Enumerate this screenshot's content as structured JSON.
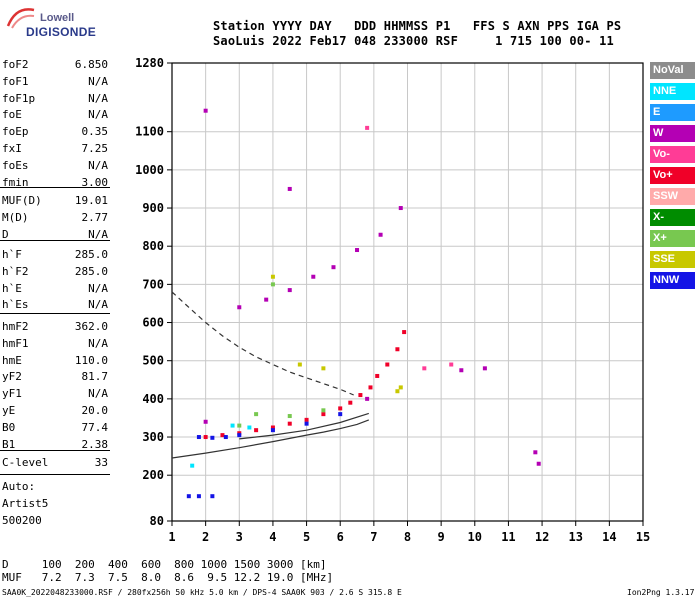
{
  "logo": {
    "line1": "Lowell",
    "line2": "DIGISONDE"
  },
  "header": {
    "line1": "Station YYYY DAY   DDD HHMMSS P1   FFS S AXN PPS IGA PS",
    "line2": "SaoLuis 2022 Feb17 048 233000 RSF     1 715 100 00- 11"
  },
  "params": {
    "group1": [
      {
        "key": "foF2",
        "value": "6.850"
      },
      {
        "key": "foF1",
        "value": "N/A"
      },
      {
        "key": "foF1p",
        "value": "N/A"
      },
      {
        "key": "foE",
        "value": "N/A"
      },
      {
        "key": "foEp",
        "value": "0.35"
      },
      {
        "key": "fxI",
        "value": "7.25"
      },
      {
        "key": "foEs",
        "value": "N/A"
      },
      {
        "key": "fmin",
        "value": "3.00"
      }
    ],
    "group2": [
      {
        "key": "MUF(D)",
        "value": "19.01"
      },
      {
        "key": "M(D)",
        "value": "2.77"
      },
      {
        "key": "D",
        "value": "N/A"
      }
    ],
    "group3": [
      {
        "key": "h`F",
        "value": "285.0"
      },
      {
        "key": "h`F2",
        "value": "285.0"
      },
      {
        "key": "h`E",
        "value": "N/A"
      },
      {
        "key": "h`Es",
        "value": "N/A"
      }
    ],
    "group4": [
      {
        "key": "hmF2",
        "value": "362.0"
      },
      {
        "key": "hmF1",
        "value": "N/A"
      },
      {
        "key": "hmE",
        "value": "110.0"
      },
      {
        "key": "yF2",
        "value": "81.7"
      },
      {
        "key": "yF1",
        "value": "N/A"
      },
      {
        "key": "yE",
        "value": "20.0"
      },
      {
        "key": "B0",
        "value": "77.4"
      },
      {
        "key": "B1",
        "value": "2.38"
      }
    ],
    "group5": [
      {
        "key": "C-level",
        "value": "33"
      }
    ],
    "auto": [
      "Auto:",
      "Artist5",
      "500200"
    ]
  },
  "bottom": {
    "d_line": "D     100  200  400  600  800 1000 1500 3000 [km]",
    "muf_line": "MUF   7.2  7.3  7.5  8.0  8.6  9.5 12.2 19.0 [MHz]"
  },
  "footer": {
    "left": "SAA0K_2022048233000.RSF / 280fx256h 50 kHz 5.0 km / DPS-4 SAA0K 903 / 2.6 S 315.8 E",
    "right": "Ion2Png 1.3.17"
  },
  "legend": [
    {
      "label": "NoVal",
      "color": "#8c8c8c"
    },
    {
      "label": "NNE",
      "color": "#00e5ff"
    },
    {
      "label": "E",
      "color": "#1e9bff"
    },
    {
      "label": "W",
      "color": "#b400b4"
    },
    {
      "label": "Vo-",
      "color": "#ff3c96"
    },
    {
      "label": "Vo+",
      "color": "#f00028"
    },
    {
      "label": "SSW",
      "color": "#ffaaaa"
    },
    {
      "label": "X-",
      "color": "#008c00"
    },
    {
      "label": "X+",
      "color": "#78c850"
    },
    {
      "label": "SSE",
      "color": "#c8c800"
    },
    {
      "label": "NNW",
      "color": "#1414e6"
    }
  ],
  "chart_data": {
    "type": "scatter",
    "x_ticks": [
      1,
      2,
      3,
      4,
      5,
      6,
      7,
      8,
      9,
      10,
      11,
      12,
      13,
      14,
      15
    ],
    "y_ticks": [
      80,
      200,
      300,
      400,
      500,
      600,
      700,
      800,
      900,
      1000,
      1100,
      1280
    ],
    "xlim": [
      1,
      15
    ],
    "ylim": [
      80,
      1280
    ],
    "grid": true,
    "legend_position": "right",
    "series": [
      {
        "color": "#f00028",
        "points": [
          [
            2.0,
            300
          ],
          [
            2.5,
            305
          ],
          [
            3.0,
            310
          ],
          [
            3.5,
            318
          ],
          [
            4.0,
            325
          ],
          [
            4.5,
            335
          ],
          [
            5.0,
            345
          ],
          [
            5.5,
            360
          ],
          [
            6.0,
            375
          ],
          [
            6.3,
            390
          ],
          [
            6.6,
            410
          ],
          [
            6.9,
            430
          ],
          [
            7.1,
            460
          ],
          [
            7.4,
            490
          ],
          [
            7.7,
            530
          ],
          [
            7.9,
            575
          ]
        ]
      },
      {
        "color": "#1414e6",
        "points": [
          [
            1.8,
            300
          ],
          [
            2.2,
            298
          ],
          [
            2.6,
            300
          ],
          [
            3.0,
            305
          ],
          [
            4.0,
            318
          ],
          [
            5.0,
            335
          ],
          [
            6.0,
            360
          ],
          [
            1.5,
            145
          ],
          [
            1.8,
            145
          ],
          [
            2.2,
            145
          ]
        ]
      },
      {
        "color": "#b400b4",
        "points": [
          [
            2.0,
            1155
          ],
          [
            2.0,
            340
          ],
          [
            6.8,
            400
          ],
          [
            7.8,
            900
          ],
          [
            7.2,
            830
          ],
          [
            6.5,
            790
          ],
          [
            5.8,
            745
          ],
          [
            5.2,
            720
          ],
          [
            4.5,
            685
          ],
          [
            3.8,
            660
          ],
          [
            3.0,
            640
          ],
          [
            4.5,
            950
          ],
          [
            11.8,
            260
          ],
          [
            11.9,
            230
          ],
          [
            10.3,
            480
          ],
          [
            9.6,
            475
          ]
        ]
      },
      {
        "color": "#78c850",
        "points": [
          [
            3.5,
            360
          ],
          [
            4.5,
            355
          ],
          [
            5.5,
            370
          ],
          [
            3.0,
            330
          ],
          [
            4.0,
            700
          ]
        ]
      },
      {
        "color": "#c8c800",
        "points": [
          [
            4.0,
            720
          ],
          [
            7.8,
            430
          ],
          [
            4.8,
            490
          ],
          [
            5.5,
            480
          ],
          [
            7.7,
            420
          ]
        ]
      },
      {
        "color": "#00e5ff",
        "points": [
          [
            2.8,
            330
          ],
          [
            3.3,
            325
          ],
          [
            1.6,
            225
          ]
        ]
      },
      {
        "color": "#ff3c96",
        "points": [
          [
            6.8,
            1110
          ],
          [
            9.3,
            490
          ],
          [
            8.5,
            480
          ]
        ]
      }
    ],
    "curves": [
      {
        "style": "dashed",
        "points": [
          [
            1.0,
            680
          ],
          [
            1.5,
            640
          ],
          [
            2.0,
            600
          ],
          [
            2.5,
            565
          ],
          [
            3.0,
            535
          ],
          [
            3.5,
            510
          ],
          [
            4.0,
            490
          ],
          [
            4.5,
            470
          ],
          [
            5.0,
            455
          ],
          [
            5.5,
            440
          ],
          [
            6.0,
            425
          ],
          [
            6.4,
            410
          ]
        ]
      },
      {
        "style": "solid",
        "points": [
          [
            1.0,
            245
          ],
          [
            2.0,
            258
          ],
          [
            3.0,
            272
          ],
          [
            4.0,
            288
          ],
          [
            5.0,
            305
          ],
          [
            5.5,
            313
          ],
          [
            6.0,
            322
          ],
          [
            6.5,
            333
          ],
          [
            6.85,
            345
          ]
        ]
      },
      {
        "style": "solid",
        "points": [
          [
            3.0,
            295
          ],
          [
            4.0,
            305
          ],
          [
            5.0,
            318
          ],
          [
            6.0,
            338
          ],
          [
            6.85,
            362
          ]
        ]
      }
    ]
  }
}
